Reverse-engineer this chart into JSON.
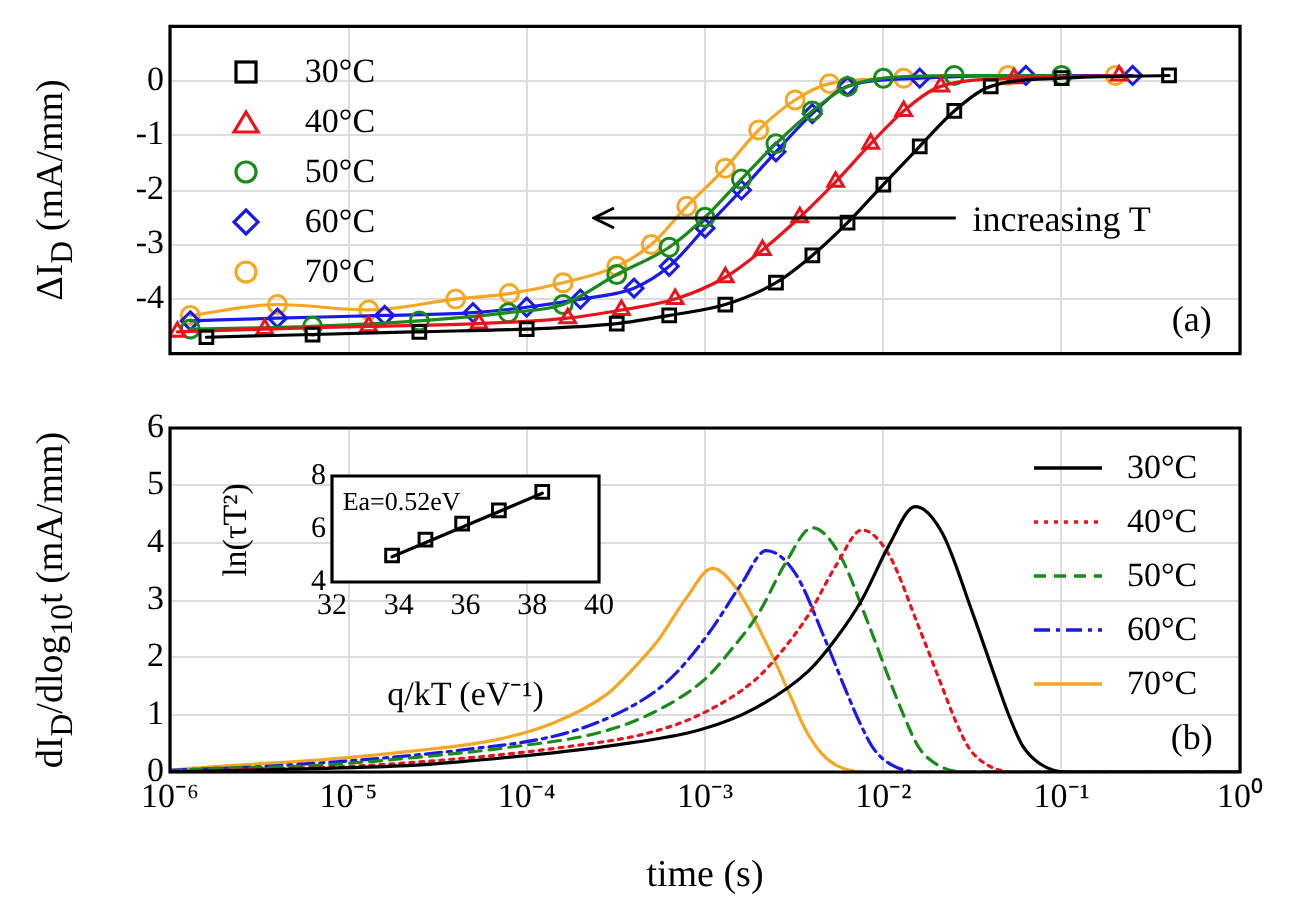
{
  "chart_data": [
    {
      "type": "line",
      "ylabel": "ΔI$_{D}$ (mA/mm)",
      "log": "x",
      "grid": true,
      "legend": "top left",
      "tick_labels": "y",
      "line_style": "solid",
      "xlim": [
        1e-06,
        1
      ],
      "xticks": [
        {
          "value": 1e-06,
          "label": null
        },
        {
          "value": 1e-05,
          "label": null
        },
        {
          "value": 0.0001,
          "label": null
        },
        {
          "value": 0.001,
          "label": null
        },
        {
          "value": 0.01,
          "label": null
        },
        {
          "value": 0.1,
          "label": null
        },
        {
          "value": 1,
          "label": null
        }
      ],
      "ylim": [
        -5,
        1
      ],
      "yticks": [
        -4,
        -3,
        -2,
        -1,
        0
      ],
      "annotations": [
        "increasing T",
        "(a)"
      ],
      "series": [
        {
          "name": "30°C",
          "color": "#000000",
          "marker": "square",
          "x": [
            1.6e-06,
            6.3e-06,
            2.5e-05,
            0.0001,
            0.00032,
            0.00063,
            0.0013,
            0.0025,
            0.004,
            0.0063,
            0.01,
            0.016,
            0.025,
            0.04,
            0.1,
            0.4
          ],
          "values": [
            -4.7,
            -4.65,
            -4.6,
            -4.55,
            -4.45,
            -4.3,
            -4.1,
            -3.7,
            -3.2,
            -2.6,
            -1.9,
            -1.2,
            -0.55,
            -0.1,
            0.05,
            0.1
          ]
        },
        {
          "name": "40°C",
          "color": "#e8131b",
          "marker": "triangle",
          "x": [
            1.1e-06,
            3.4e-06,
            1.3e-05,
            5.4e-05,
            0.00017,
            0.00034,
            0.00068,
            0.0013,
            0.0021,
            0.0034,
            0.0054,
            0.0085,
            0.013,
            0.021,
            0.054,
            0.21
          ],
          "values": [
            -4.6,
            -4.55,
            -4.5,
            -4.45,
            -4.35,
            -4.2,
            -4.0,
            -3.6,
            -3.1,
            -2.5,
            -1.85,
            -1.15,
            -0.55,
            -0.1,
            0.05,
            0.1
          ]
        },
        {
          "name": "50°C",
          "color": "#1a8a1a",
          "marker": "circle",
          "x": [
            1.3e-06,
            6.3e-06,
            2.5e-05,
            7.9e-05,
            0.00016,
            0.00032,
            0.00063,
            0.001,
            0.0016,
            0.0025,
            0.004,
            0.0063,
            0.01,
            0.025,
            0.1
          ],
          "values": [
            -4.55,
            -4.5,
            -4.4,
            -4.25,
            -4.1,
            -3.55,
            -3.05,
            -2.5,
            -1.8,
            -1.15,
            -0.55,
            -0.1,
            0.05,
            0.1,
            0.1
          ]
        },
        {
          "name": "60°C",
          "color": "#1a1ae8",
          "marker": "diamond",
          "x": [
            1.3e-06,
            4e-06,
            1.6e-05,
            5e-05,
            0.0001,
            0.0002,
            0.0004,
            0.00063,
            0.001,
            0.0016,
            0.0025,
            0.004,
            0.0063,
            0.016,
            0.063,
            0.25
          ],
          "values": [
            -4.4,
            -4.35,
            -4.3,
            -4.25,
            -4.15,
            -4.0,
            -3.8,
            -3.4,
            -2.7,
            -2.0,
            -1.3,
            -0.6,
            -0.1,
            0.05,
            0.1,
            0.1
          ]
        },
        {
          "name": "70°C",
          "color": "#f5a623",
          "marker": "circle",
          "x": [
            1.3e-06,
            4e-06,
            1.3e-05,
            4e-05,
            8e-05,
            0.00016,
            0.00032,
            0.0005,
            0.00079,
            0.0013,
            0.002,
            0.0032,
            0.005,
            0.013,
            0.05,
            0.2
          ],
          "values": [
            -4.3,
            -4.1,
            -4.2,
            -4.0,
            -3.9,
            -3.7,
            -3.4,
            -3.0,
            -2.3,
            -1.6,
            -0.9,
            -0.35,
            -0.05,
            0.05,
            0.1,
            0.1
          ]
        }
      ]
    },
    {
      "type": "line",
      "xlabel": "time (s)",
      "ylabel": "dI$_{D}$/dlog$_{10}$t (mA/mm)",
      "log": "x",
      "grid": true,
      "legend": "top right",
      "xlim": [
        1e-06,
        1
      ],
      "xticks": [
        {
          "value": 1e-06,
          "label": "10⁻⁶"
        },
        {
          "value": 1e-05,
          "label": "10⁻⁵"
        },
        {
          "value": 0.0001,
          "label": "10⁻⁴"
        },
        {
          "value": 0.001,
          "label": "10⁻³"
        },
        {
          "value": 0.01,
          "label": "10⁻²"
        },
        {
          "value": 0.1,
          "label": "10⁻¹"
        },
        {
          "value": 1,
          "label": "10⁰"
        }
      ],
      "ylim": [
        0,
        6
      ],
      "yticks": [
        0,
        1,
        2,
        3,
        4,
        5,
        6
      ],
      "annotations": [
        "(b)"
      ],
      "series": [
        {
          "name": "30°C",
          "color": "#000000",
          "line_style": "solid",
          "x": [
            1e-06,
            4.8e-06,
            2.4e-05,
            9.5e-05,
            0.0003,
            0.00095,
            0.0019,
            0.0038,
            0.0054,
            0.0076,
            0.0107,
            0.0151,
            0.0214,
            0.0316,
            0.0427,
            0.0501,
            0.0603,
            0.0759,
            0.107,
            1
          ],
          "values": [
            0,
            0.05,
            0.12,
            0.28,
            0.46,
            0.74,
            1.11,
            1.76,
            2.32,
            3.01,
            3.94,
            4.63,
            4.17,
            2.78,
            1.62,
            1.02,
            0.46,
            0.14,
            0,
            0
          ]
        },
        {
          "name": "40°C",
          "color": "#e8131b",
          "line_style": "dotted",
          "x": [
            1e-06,
            2.4e-06,
            1.2e-05,
            4.8e-05,
            0.00015,
            0.00048,
            0.00095,
            0.0019,
            0.0027,
            0.0038,
            0.0054,
            0.0076,
            0.0107,
            0.0158,
            0.0214,
            0.0251,
            0.0302,
            0.038,
            0.0537,
            1
          ],
          "values": [
            0,
            0.04,
            0.11,
            0.25,
            0.42,
            0.68,
            1.01,
            1.6,
            2.11,
            2.74,
            3.59,
            4.22,
            3.8,
            2.53,
            1.48,
            0.93,
            0.42,
            0.13,
            0,
            0
          ]
        },
        {
          "name": "50°C",
          "color": "#1a8a1a",
          "line_style": "dashed",
          "x": [
            1e-06,
            1.3e-06,
            6.3e-06,
            2.5e-05,
            7.9e-05,
            0.00025,
            0.0005,
            0.001,
            0.0014,
            0.002,
            0.0028,
            0.004,
            0.0056,
            0.0083,
            0.0112,
            0.0132,
            0.0158,
            0.02,
            0.0282,
            1
          ],
          "values": [
            0,
            0.04,
            0.11,
            0.26,
            0.43,
            0.68,
            1.02,
            1.62,
            2.13,
            2.77,
            3.62,
            4.26,
            3.83,
            2.56,
            1.49,
            0.94,
            0.43,
            0.13,
            0,
            0
          ]
        },
        {
          "name": "60°C",
          "color": "#1a1ae8",
          "line_style": "dashdot",
          "x": [
            1e-06,
            3.5e-06,
            1.4e-05,
            4.5e-05,
            0.00014,
            0.00028,
            0.00056,
            0.00079,
            0.0011,
            0.0016,
            0.0022,
            0.0032,
            0.0047,
            0.0063,
            0.0074,
            0.0089,
            0.0112,
            0.0158,
            1
          ],
          "values": [
            0.03,
            0.1,
            0.23,
            0.39,
            0.62,
            0.93,
            1.47,
            1.93,
            2.51,
            3.28,
            3.86,
            3.47,
            2.32,
            1.35,
            0.85,
            0.39,
            0.12,
            0,
            0
          ]
        },
        {
          "name": "70°C",
          "color": "#f5a623",
          "line_style": "solid",
          "x": [
            1e-06,
            1.7e-06,
            6.9e-06,
            2.2e-05,
            6.9e-05,
            0.00014,
            0.00028,
            0.00039,
            0.00055,
            0.00078,
            0.0011,
            0.0015,
            0.0023,
            0.0031,
            0.0036,
            0.0044,
            0.0055,
            0.0078,
            1
          ],
          "values": [
            0.03,
            0.09,
            0.21,
            0.36,
            0.57,
            0.85,
            1.35,
            1.78,
            2.31,
            3.02,
            3.55,
            3.2,
            2.13,
            1.24,
            0.78,
            0.36,
            0.11,
            0,
            0
          ]
        }
      ]
    },
    {
      "type": "scatter",
      "xlabel": "q/kT (eV⁻¹)",
      "ylabel": "ln(τT²)",
      "marker": "square",
      "xlim": [
        32,
        40
      ],
      "xticks": [
        32,
        34,
        36,
        38,
        40
      ],
      "ylim": [
        4,
        8
      ],
      "yticks": [
        4,
        6,
        8
      ],
      "annotations": [
        "Ea=0.52eV"
      ],
      "series": [
        {
          "color": "#000000",
          "x": [
            33.8,
            34.8,
            35.9,
            37.0,
            38.3
          ],
          "values": [
            5.0,
            5.6,
            6.2,
            6.7,
            7.4
          ]
        },
        {
          "type": "line",
          "color": "#000000",
          "marker": "none",
          "x": [
            33.8,
            38.3
          ],
          "values": [
            4.95,
            7.35
          ]
        }
      ]
    }
  ]
}
